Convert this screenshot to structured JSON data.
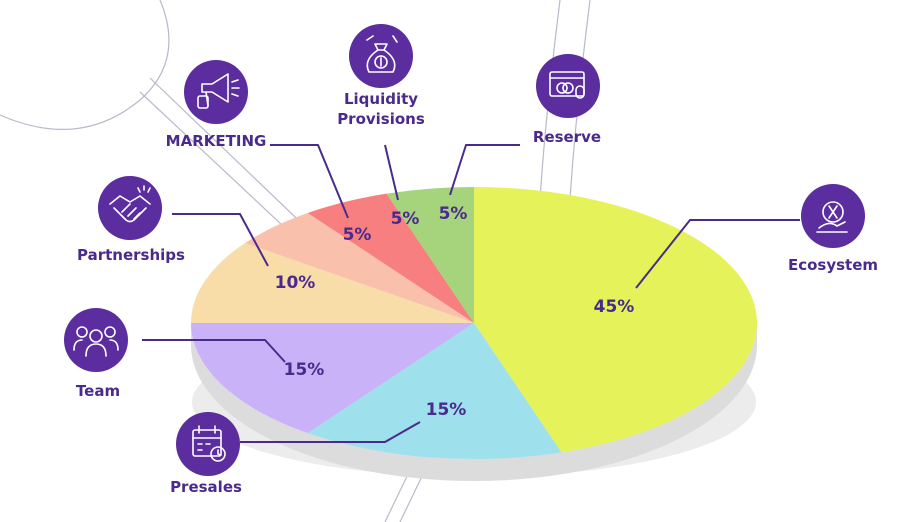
{
  "chart_data": {
    "type": "pie",
    "categories": [
      "Ecosystem",
      "Presales",
      "Team",
      "Partnerships",
      "MARKETING",
      "Liquidity\nProvisions",
      "Reserve"
    ],
    "values": [
      45,
      15,
      15,
      10,
      5,
      5,
      5
    ],
    "labels": [
      "45%",
      "15%",
      "15%",
      "10%",
      "5%",
      "5%",
      "5%"
    ],
    "colors": [
      "#e6f25a",
      "#9ee0ec",
      "#c9b2f8",
      "#f8dda8",
      "#f9c1ac",
      "#f77f7f",
      "#a5d47c"
    ],
    "icons": [
      "ecosystem-icon",
      "presales-calendar-icon",
      "team-icon",
      "partnerships-handshake-icon",
      "marketing-megaphone-icon",
      "liquidity-money-bag-icon",
      "reserve-payment-icon"
    ],
    "start": "top, clockwise",
    "legend": "none",
    "colors_side": "#dcdcdc"
  }
}
